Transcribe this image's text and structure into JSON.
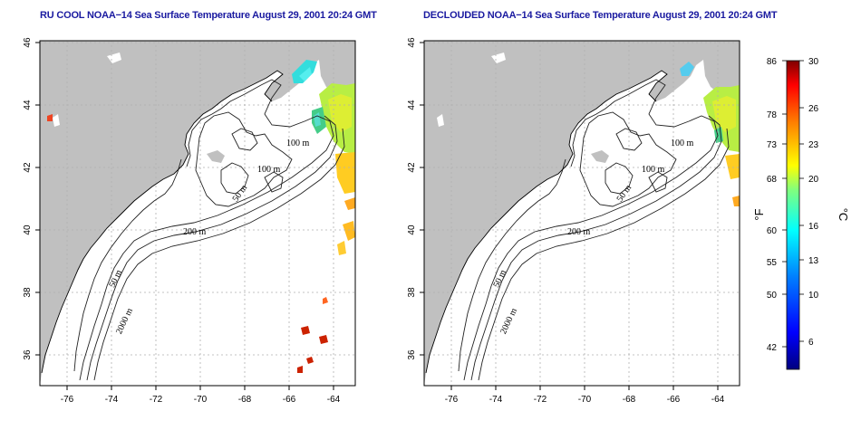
{
  "left_panel": {
    "title": "RU COOL NOAA−14 Sea Surface Temperature August 29, 2001 20:24 GMT",
    "x_ticks": [
      "-76",
      "-74",
      "-72",
      "-70",
      "-68",
      "-66",
      "-64"
    ],
    "y_ticks": [
      "46",
      "44",
      "42",
      "40",
      "38",
      "36"
    ],
    "contour_labels": [
      "100 m",
      "100 m",
      "50 m",
      "200 m",
      "50 m",
      "2000 m"
    ]
  },
  "right_panel": {
    "title": "DECLOUDED NOAA−14 Sea Surface Temperature August 29, 2001 20:24 GMT",
    "x_ticks": [
      "-76",
      "-74",
      "-72",
      "-70",
      "-68",
      "-66",
      "-64"
    ],
    "y_ticks": [
      "46",
      "44",
      "42",
      "40",
      "38",
      "36"
    ],
    "contour_labels": [
      "100 m",
      "100 m",
      "50 m",
      "200 m",
      "50 m",
      "2000 m"
    ]
  },
  "colorbar": {
    "fahrenheit_labels": [
      "86",
      "78",
      "73",
      "68",
      "60",
      "55",
      "50",
      "42"
    ],
    "celsius_labels": [
      "30",
      "26",
      "23",
      "20",
      "16",
      "13",
      "10",
      "6"
    ],
    "fahrenheit_unit": "°F",
    "celsius_unit": "°C",
    "colors": [
      "#00007f",
      "#0000ff",
      "#007fff",
      "#00ffff",
      "#7fff7f",
      "#ffff00",
      "#ff7f00",
      "#ff0000",
      "#7f0000"
    ]
  },
  "colors": {
    "land": "#c0c0c0",
    "ocean": "#ffffff",
    "title": "#1a1aa0",
    "grid": "#b0b0b0"
  }
}
